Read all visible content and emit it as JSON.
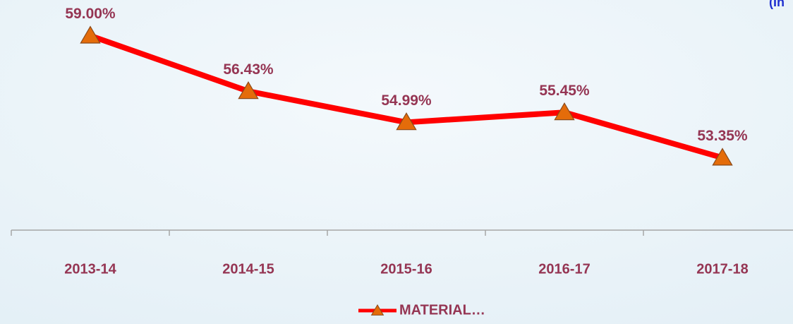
{
  "chart_data": {
    "type": "line",
    "annotation": "(In",
    "categories": [
      "2013-14",
      "2014-15",
      "2015-16",
      "2016-17",
      "2017-18"
    ],
    "series": [
      {
        "name": "MATERIAL…",
        "color": "#ff0000",
        "marker_color": "#e46c0a",
        "values": [
          59.0,
          56.43,
          54.99,
          55.45,
          53.35
        ],
        "value_labels": [
          "59.00%",
          "56.43%",
          "54.99%",
          "55.45%",
          "53.35%"
        ]
      }
    ],
    "ylim": [
      50,
      60
    ],
    "legend": "bottom"
  }
}
